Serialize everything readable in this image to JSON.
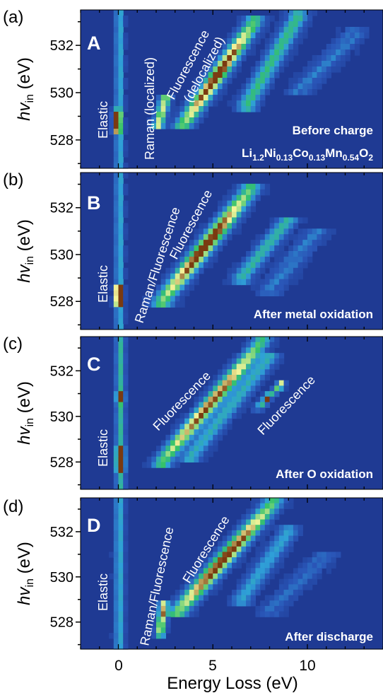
{
  "colors": {
    "background": "#1f3a93",
    "low": "#2a56b8",
    "mid": "#2fa0d8",
    "high": "#35c26a",
    "peak": "#f4f49a",
    "hot": "#7a3a10",
    "text_on_map": "#ffffff"
  },
  "chart_data": {
    "type": "heatmap",
    "xlabel": "Energy Loss (eV)",
    "x_ticks": [
      "0",
      "5",
      "10"
    ],
    "x_tick_values": [
      0,
      5,
      10
    ],
    "xlim": [
      -2,
      14
    ],
    "ylabel_main": "hv",
    "ylabel_sub": "in",
    "ylabel_unit": " (eV)",
    "y_ticks": [
      "528",
      "530",
      "532"
    ],
    "y_tick_values": [
      528,
      530,
      532
    ],
    "ylim": [
      526.8,
      533.5
    ],
    "panels": [
      {
        "label": "(a)",
        "letter": "A",
        "state": "Before charge",
        "formula": {
          "parts": [
            {
              "t": "Li",
              "sub": "1.2"
            },
            {
              "t": "Ni",
              "sub": "0.13"
            },
            {
              "t": "Co",
              "sub": "0.13"
            },
            {
              "t": "Mn",
              "sub": "0.54"
            },
            {
              "t": "O",
              "sub": "2"
            }
          ]
        },
        "annotations": [
          "Elastic",
          "Raman (localized)",
          "Fluorescence",
          "(delocalized)"
        ],
        "features": [
          {
            "kind": "elastic",
            "e0": 0.05,
            "e1": 0.05,
            "y0": 527.0,
            "y1": 533.5,
            "w": 0.2,
            "amp": 0.45
          },
          {
            "kind": "spot",
            "e0": -0.1,
            "e1": -0.1,
            "y0": 528.4,
            "y1": 529.2,
            "w": 0.2,
            "amp": 0.8
          },
          {
            "kind": "raman",
            "e0": 2.1,
            "e1": 2.5,
            "y0": 528.6,
            "y1": 529.8,
            "w": 0.3,
            "amp": 0.75
          },
          {
            "kind": "fluor",
            "e0": 3.4,
            "e1": 7.2,
            "y0": 528.6,
            "y1": 533.0,
            "w": 0.5,
            "amp": 1.0
          },
          {
            "kind": "fluor2",
            "e0": 6.8,
            "e1": 9.5,
            "y0": 529.5,
            "y1": 533.2,
            "w": 0.5,
            "amp": 0.55
          },
          {
            "kind": "faint",
            "e0": 9.5,
            "e1": 12.5,
            "y0": 530.0,
            "y1": 532.5,
            "w": 0.6,
            "amp": 0.3
          }
        ]
      },
      {
        "label": "(b)",
        "letter": "B",
        "state": "After metal oxidation",
        "annotations": [
          "Elastic",
          "Raman/Fluorescence",
          "Fluorescence"
        ],
        "features": [
          {
            "kind": "elastic",
            "e0": 0.05,
            "e1": 0.05,
            "y0": 527.0,
            "y1": 533.5,
            "w": 0.2,
            "amp": 0.45
          },
          {
            "kind": "spot",
            "e0": 0.0,
            "e1": 0.0,
            "y0": 527.9,
            "y1": 528.6,
            "w": 0.2,
            "amp": 0.85
          },
          {
            "kind": "fluor",
            "e0": 2.3,
            "e1": 7.0,
            "y0": 528.0,
            "y1": 532.8,
            "w": 0.55,
            "amp": 1.0
          },
          {
            "kind": "fluor2",
            "e0": 6.5,
            "e1": 9.0,
            "y0": 529.0,
            "y1": 531.5,
            "w": 0.5,
            "amp": 0.5
          },
          {
            "kind": "faint",
            "e0": 8.0,
            "e1": 10.5,
            "y0": 528.5,
            "y1": 531.0,
            "w": 0.6,
            "amp": 0.3
          }
        ]
      },
      {
        "label": "(c)",
        "letter": "C",
        "state": "After O oxidation",
        "annotations": [
          "Elastic",
          "Fluorescence",
          "Fluorescence"
        ],
        "features": [
          {
            "kind": "elastic",
            "e0": 0.1,
            "e1": 0.1,
            "y0": 527.0,
            "y1": 533.5,
            "w": 0.22,
            "amp": 0.5
          },
          {
            "kind": "spot",
            "e0": 0.1,
            "e1": 0.1,
            "y0": 527.6,
            "y1": 528.6,
            "w": 0.2,
            "amp": 0.9
          },
          {
            "kind": "spot",
            "e0": 0.1,
            "e1": 0.1,
            "y0": 530.6,
            "y1": 531.1,
            "w": 0.2,
            "amp": 0.6
          },
          {
            "kind": "fluor",
            "e0": 2.3,
            "e1": 7.6,
            "y0": 528.0,
            "y1": 533.3,
            "w": 0.5,
            "amp": 0.95
          },
          {
            "kind": "fluor2",
            "e0": 3.8,
            "e1": 8.0,
            "y0": 528.2,
            "y1": 532.6,
            "w": 0.5,
            "amp": 0.45
          },
          {
            "kind": "hotspot",
            "e0": 7.4,
            "e1": 8.6,
            "y0": 530.4,
            "y1": 531.4,
            "w": 0.25,
            "amp": 1.0
          }
        ]
      },
      {
        "label": "(d)",
        "letter": "D",
        "state": "After discharge",
        "annotations": [
          "Elastic",
          "Raman/Fluorescence",
          "Fluorescence"
        ],
        "features": [
          {
            "kind": "elastic",
            "e0": 0.05,
            "e1": 0.05,
            "y0": 527.0,
            "y1": 533.5,
            "w": 0.22,
            "amp": 0.45
          },
          {
            "kind": "raman",
            "e0": 2.2,
            "e1": 2.4,
            "y0": 527.5,
            "y1": 528.8,
            "w": 0.25,
            "amp": 0.8
          },
          {
            "kind": "fluor",
            "e0": 3.1,
            "e1": 8.2,
            "y0": 528.4,
            "y1": 533.3,
            "w": 0.55,
            "amp": 1.0
          },
          {
            "kind": "fluor2",
            "e0": 6.5,
            "e1": 9.0,
            "y0": 529.0,
            "y1": 532.0,
            "w": 0.5,
            "amp": 0.4
          },
          {
            "kind": "faint",
            "e0": 8.0,
            "e1": 11.0,
            "y0": 528.5,
            "y1": 531.0,
            "w": 0.6,
            "amp": 0.25
          }
        ]
      }
    ]
  }
}
